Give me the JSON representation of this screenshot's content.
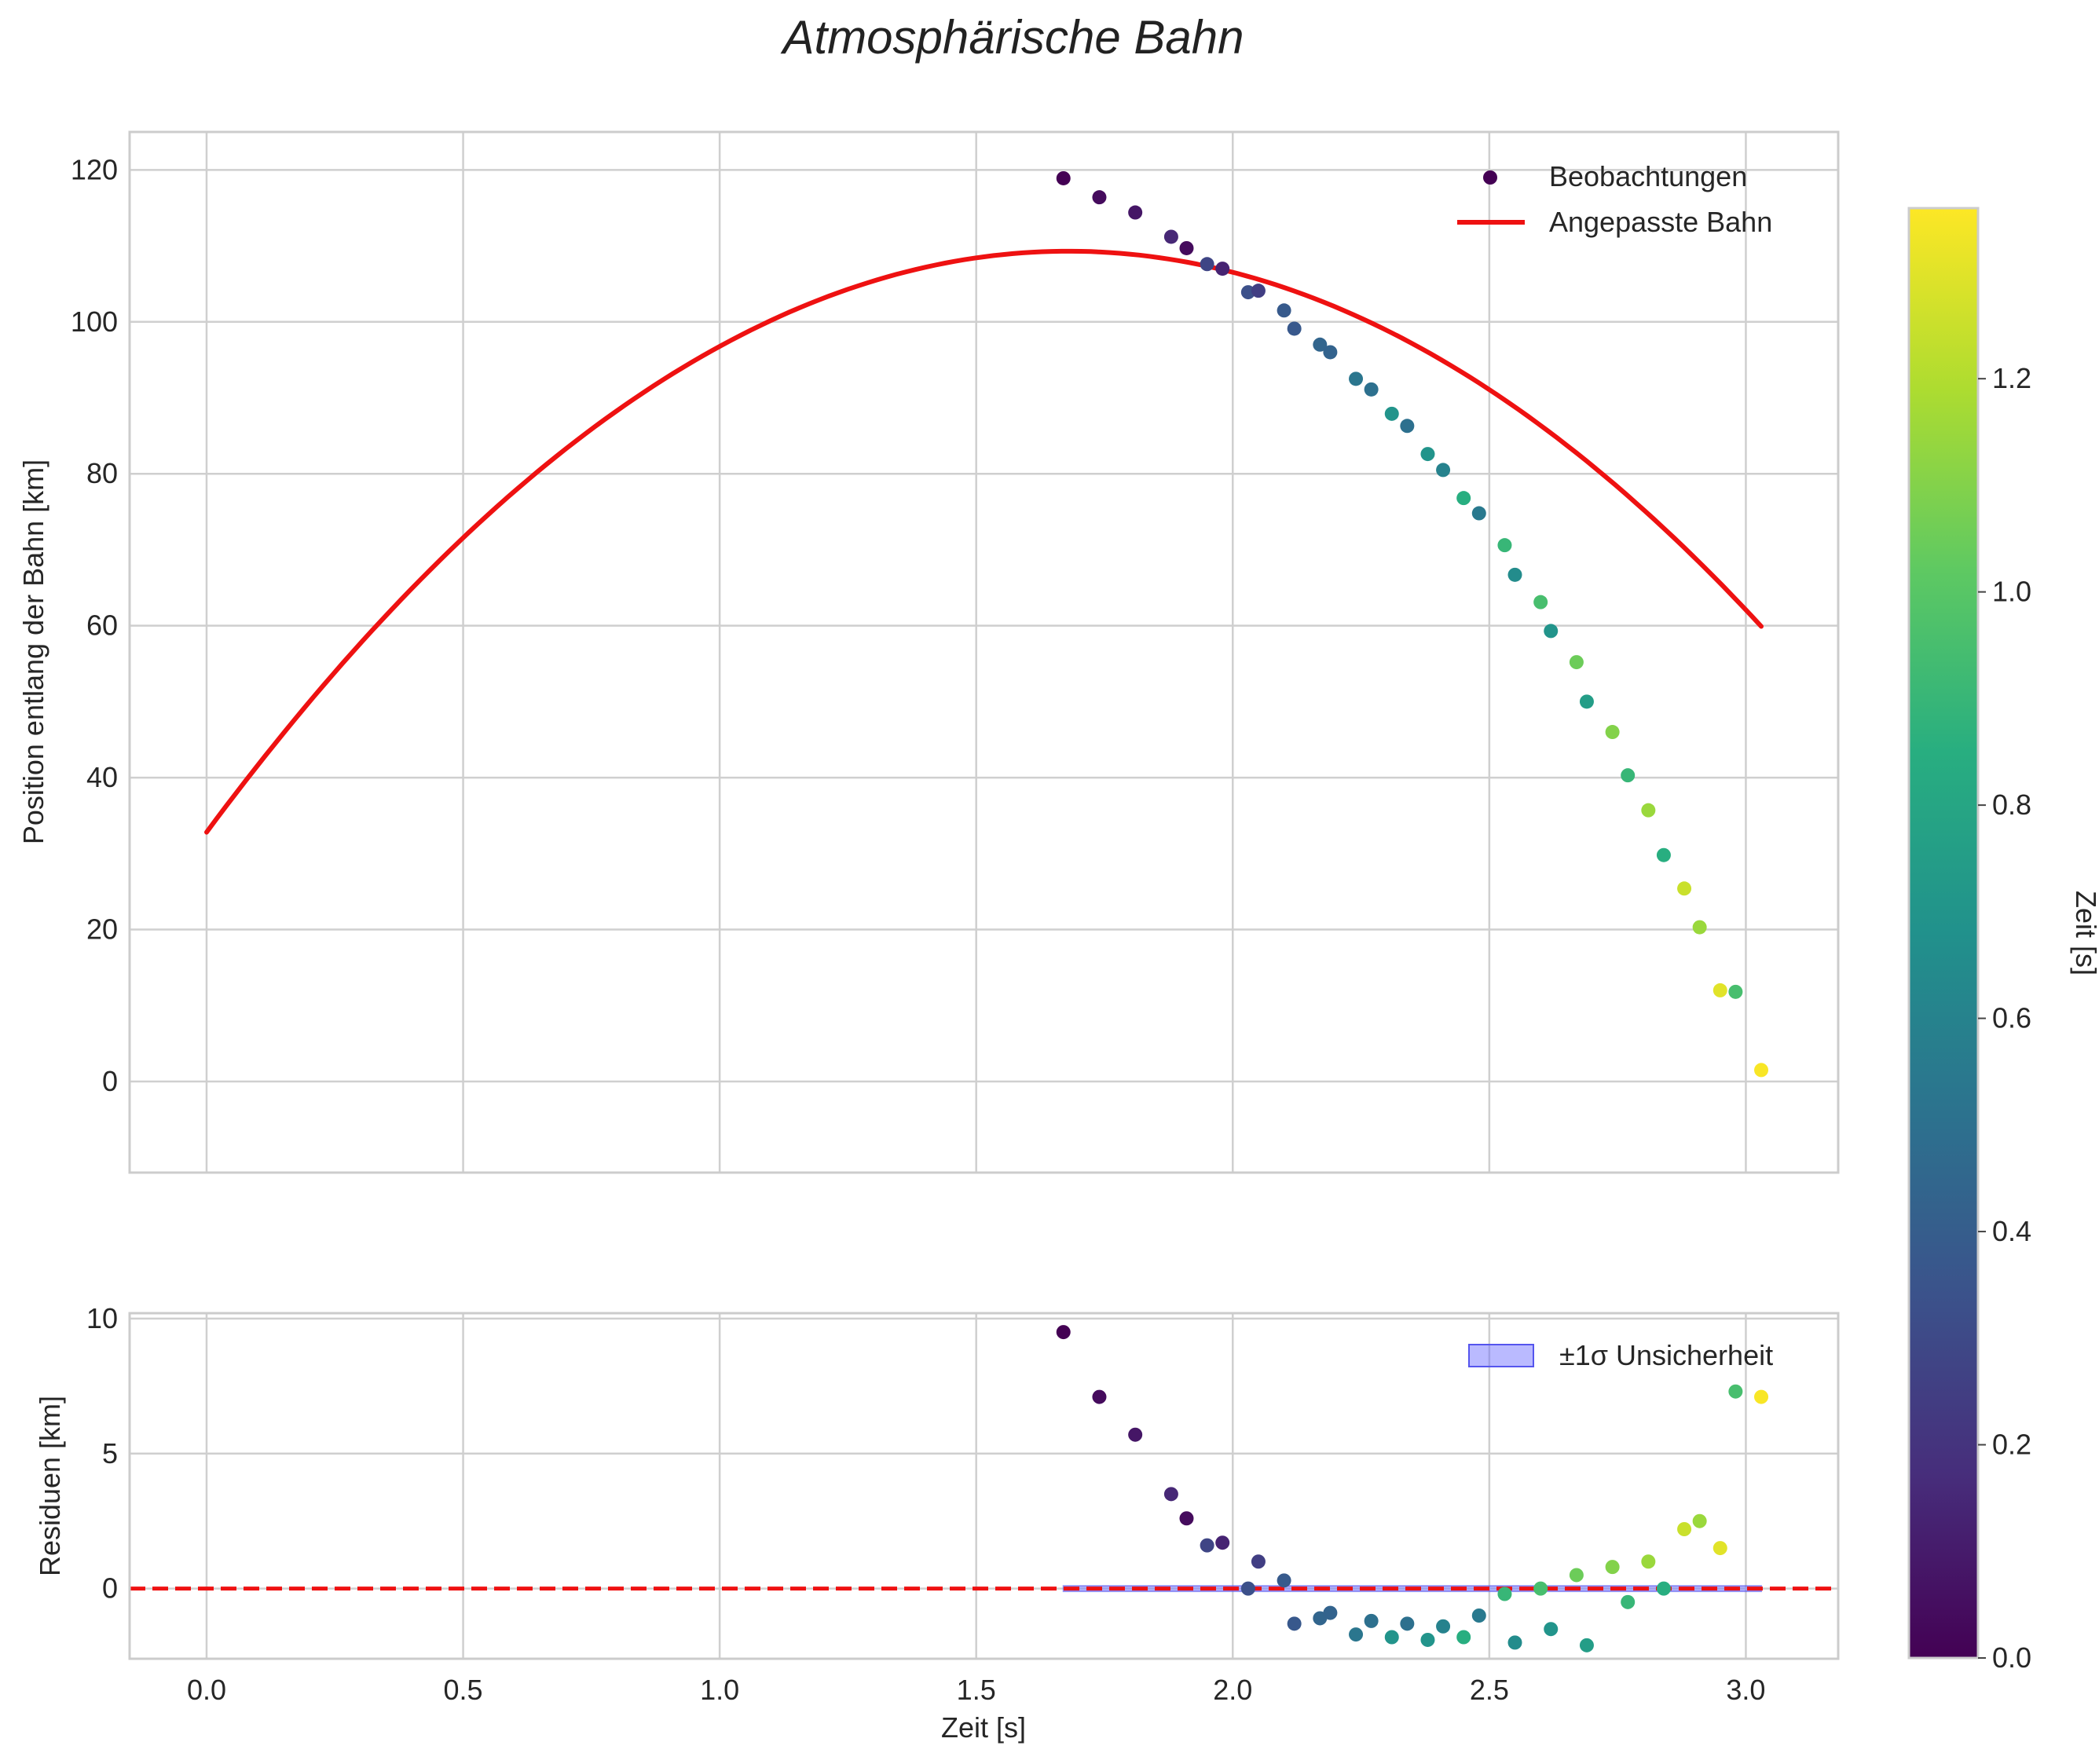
{
  "chart_data": [
    {
      "type": "scatter+line",
      "title": "Atmosphärische Bahn",
      "xlabel": "",
      "ylabel": "Position entlang der Bahn [km]",
      "xlim": [
        -0.15,
        3.18
      ],
      "ylim": [
        -12,
        125
      ],
      "xticks": [
        "0.0",
        "0.5",
        "1.0",
        "1.5",
        "2.0",
        "2.5",
        "3.0"
      ],
      "yticks": [
        "0",
        "20",
        "40",
        "60",
        "80",
        "100",
        "120"
      ],
      "xtick_values": [
        0,
        0.5,
        1.0,
        1.5,
        2.0,
        2.5,
        3.0
      ],
      "ytick_values": [
        0,
        20,
        40,
        60,
        80,
        100,
        120
      ],
      "legend": {
        "scatter": "Beobachtungen",
        "line": "Angepasste Bahn",
        "position": "top-right"
      },
      "fit_curve": {
        "name": "Angepasste Bahn",
        "color": "#ee1111",
        "x_start": 0,
        "x_end": 3.03,
        "vertex_x": 1.68,
        "vertex_y": 109.3,
        "curvature": -27.1
      },
      "observations": {
        "name": "Beobachtungen",
        "x": [
          1.67,
          1.74,
          1.81,
          1.88,
          1.91,
          1.95,
          1.98,
          2.03,
          2.05,
          2.1,
          2.12,
          2.17,
          2.19,
          2.24,
          2.27,
          2.31,
          2.34,
          2.38,
          2.41,
          2.45,
          2.48,
          2.53,
          2.55,
          2.6,
          2.62,
          2.67,
          2.69,
          2.74,
          2.77,
          2.81,
          2.84,
          2.88,
          2.91,
          2.95,
          2.98,
          3.03
        ],
        "y": [
          118.9,
          116.4,
          114.4,
          111.2,
          109.7,
          107.6,
          107.0,
          103.9,
          104.1,
          101.5,
          99.1,
          97.0,
          96.0,
          92.5,
          91.1,
          87.9,
          86.3,
          82.6,
          80.5,
          76.8,
          74.8,
          70.6,
          66.7,
          63.1,
          59.3,
          55.2,
          50.0,
          46.0,
          40.3,
          35.7,
          29.8,
          25.4,
          20.3,
          12.0,
          11.8,
          1.5
        ],
        "t": [
          0.0,
          0.04,
          0.08,
          0.15,
          0.04,
          0.28,
          0.13,
          0.33,
          0.25,
          0.38,
          0.37,
          0.44,
          0.43,
          0.53,
          0.5,
          0.7,
          0.5,
          0.7,
          0.6,
          0.85,
          0.55,
          0.9,
          0.65,
          0.95,
          0.7,
          1.05,
          0.75,
          1.1,
          0.9,
          1.15,
          0.85,
          1.25,
          1.15,
          1.3,
          0.95,
          1.35
        ]
      }
    },
    {
      "type": "scatter",
      "xlabel": "Zeit [s]",
      "ylabel": "Residuen [km]",
      "xlim": [
        -0.15,
        3.18
      ],
      "ylim": [
        -2.6,
        10.2
      ],
      "xticks": [
        "0.0",
        "0.5",
        "1.0",
        "1.5",
        "2.0",
        "2.5",
        "3.0"
      ],
      "yticks": [
        "0",
        "5",
        "10"
      ],
      "xtick_values": [
        0,
        0.5,
        1.0,
        1.5,
        2.0,
        2.5,
        3.0
      ],
      "ytick_values": [
        0,
        5,
        10
      ],
      "zero_line": {
        "y": 0,
        "color": "#ee1111",
        "style": "dashed"
      },
      "uncertainty_band": {
        "label": "±1σ Unsicherheit",
        "x_start": 1.67,
        "x_end": 3.03,
        "half_width": 0.1,
        "color": "#6666ff",
        "position": "top-right"
      },
      "residuals": {
        "x": [
          1.67,
          1.74,
          1.81,
          1.88,
          1.91,
          1.95,
          1.98,
          2.03,
          2.05,
          2.1,
          2.12,
          2.17,
          2.19,
          2.24,
          2.27,
          2.31,
          2.34,
          2.38,
          2.41,
          2.45,
          2.48,
          2.53,
          2.55,
          2.6,
          2.62,
          2.67,
          2.69,
          2.74,
          2.77,
          2.81,
          2.84,
          2.88,
          2.91,
          2.95,
          2.98,
          3.03
        ],
        "y": [
          9.5,
          7.1,
          5.7,
          3.5,
          2.6,
          1.6,
          1.7,
          0.0,
          1.0,
          0.3,
          -1.3,
          -1.1,
          -0.9,
          -1.7,
          -1.2,
          -1.8,
          -1.3,
          -1.9,
          -1.4,
          -1.8,
          -1.0,
          -0.2,
          -2.0,
          0.0,
          -1.5,
          0.5,
          -2.1,
          0.8,
          -0.5,
          1.0,
          0.0,
          2.2,
          2.5,
          1.5,
          7.3,
          7.1
        ],
        "t": [
          0.0,
          0.04,
          0.08,
          0.15,
          0.04,
          0.28,
          0.13,
          0.33,
          0.25,
          0.38,
          0.37,
          0.44,
          0.43,
          0.53,
          0.5,
          0.7,
          0.5,
          0.7,
          0.6,
          0.85,
          0.55,
          0.9,
          0.65,
          0.95,
          0.7,
          1.05,
          0.75,
          1.1,
          0.9,
          1.15,
          0.85,
          1.25,
          1.15,
          1.3,
          0.95,
          1.35
        ]
      }
    }
  ],
  "colorbar": {
    "label": "Zeit [s]",
    "colormap": "viridis",
    "range": [
      0.0,
      1.36
    ],
    "ticks": [
      "0.0",
      "0.2",
      "0.4",
      "0.6",
      "0.8",
      "1.0",
      "1.2"
    ],
    "tick_values": [
      0.0,
      0.2,
      0.4,
      0.6,
      0.8,
      1.0,
      1.2
    ]
  }
}
